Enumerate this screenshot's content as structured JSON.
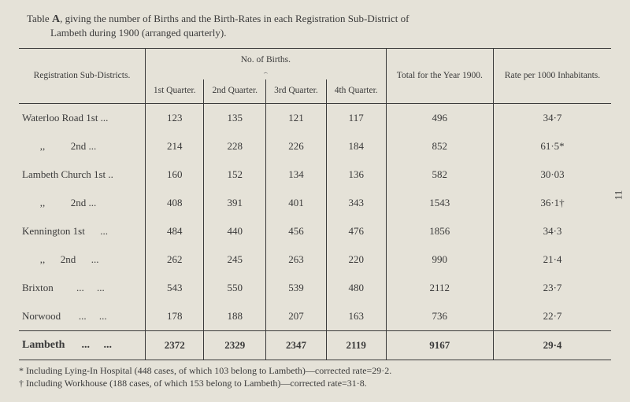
{
  "page_number": "11",
  "title_prefix": "Table",
  "title_letter": "A",
  "title_rest": ", giving the number of Births and the Birth-Rates in each Registration Sub-District of",
  "title_line2": "Lambeth during 1900 (arranged quarterly).",
  "headers": {
    "reg": "Registration Sub-Districts.",
    "no_births": "No. of Births.",
    "q1": "1st Quarter.",
    "q2": "2nd Quarter.",
    "q3": "3rd Quarter.",
    "q4": "4th Quarter.",
    "total": "Total for the Year 1900.",
    "rate": "Rate per 1000 Inhabitants."
  },
  "rows": [
    {
      "label": "Waterloo Road 1st  ...",
      "q1": "123",
      "q2": "135",
      "q3": "121",
      "q4": "117",
      "total": "496",
      "rate": "34·7"
    },
    {
      "label": "       ,,          2nd ...",
      "q1": "214",
      "q2": "228",
      "q3": "226",
      "q4": "184",
      "total": "852",
      "rate": "61·5*"
    },
    {
      "label": "Lambeth Church 1st ..",
      "q1": "160",
      "q2": "152",
      "q3": "134",
      "q4": "136",
      "total": "582",
      "rate": "30·03"
    },
    {
      "label": "       ,,          2nd ...",
      "q1": "408",
      "q2": "391",
      "q3": "401",
      "q4": "343",
      "total": "1543",
      "rate": "36·1†"
    },
    {
      "label": "Kennington 1st      ...",
      "q1": "484",
      "q2": "440",
      "q3": "456",
      "q4": "476",
      "total": "1856",
      "rate": "34·3"
    },
    {
      "label": "       ,,      2nd      ...",
      "q1": "262",
      "q2": "245",
      "q3": "263",
      "q4": "220",
      "total": "990",
      "rate": "21·4"
    },
    {
      "label": "Brixton         ...     ...",
      "q1": "543",
      "q2": "550",
      "q3": "539",
      "q4": "480",
      "total": "2112",
      "rate": "23·7"
    },
    {
      "label": "Norwood       ...     ...",
      "q1": "178",
      "q2": "188",
      "q3": "207",
      "q4": "163",
      "total": "736",
      "rate": "22·7"
    }
  ],
  "total_row": {
    "label": "Lambeth      ...     ...",
    "q1": "2372",
    "q2": "2329",
    "q3": "2347",
    "q4": "2119",
    "total": "9167",
    "rate": "29·4"
  },
  "footnote1": "* Including Lying-In Hospital (448 cases, of which 103 belong to Lambeth)—corrected rate=29·2.",
  "footnote2": "† Including Workhouse (188 cases, of which 153 belong to Lambeth)—corrected rate=31·8."
}
